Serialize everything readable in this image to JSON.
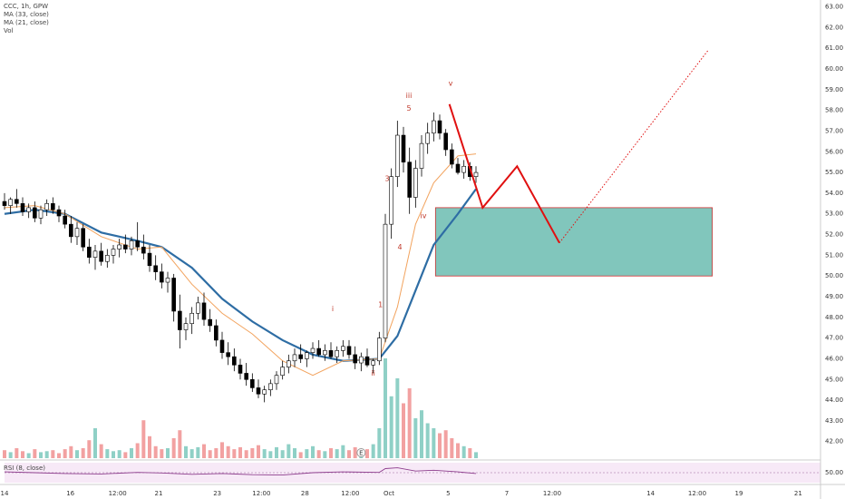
{
  "chart_data": {
    "type": "candlestick",
    "title": "CCC, 1h, GPW",
    "xlim": [
      0,
      135
    ],
    "ylim": [
      41.2,
      63.2
    ],
    "grid": true,
    "xticks": [
      {
        "value": 0,
        "label": "14"
      },
      {
        "value": 10.9,
        "label": "16"
      },
      {
        "value": 18.7,
        "label": "12:00"
      },
      {
        "value": 25.5,
        "label": "21"
      },
      {
        "value": 35.2,
        "label": "23"
      },
      {
        "value": 42.5,
        "label": "12:00"
      },
      {
        "value": 49.7,
        "label": "28"
      },
      {
        "value": 57.2,
        "label": "12:00"
      },
      {
        "value": 63.6,
        "label": "Oct"
      },
      {
        "value": 73.4,
        "label": "5"
      },
      {
        "value": 83.1,
        "label": "7"
      },
      {
        "value": 90.6,
        "label": "12:00"
      },
      {
        "value": 106.9,
        "label": "14"
      },
      {
        "value": 114.6,
        "label": "12:00"
      },
      {
        "value": 121.5,
        "label": "19"
      },
      {
        "value": 131.3,
        "label": "21"
      }
    ],
    "yticks": [
      {
        "value": 42,
        "label": "42.00"
      },
      {
        "value": 43,
        "label": "43.00"
      },
      {
        "value": 44,
        "label": "44.00"
      },
      {
        "value": 45,
        "label": "45.00"
      },
      {
        "value": 46,
        "label": "46.00"
      },
      {
        "value": 47,
        "label": "47.00"
      },
      {
        "value": 48,
        "label": "48.00"
      },
      {
        "value": 49,
        "label": "49.00"
      },
      {
        "value": 50,
        "label": "50.00"
      },
      {
        "value": 51,
        "label": "51.00"
      },
      {
        "value": 52,
        "label": "52.00"
      },
      {
        "value": 53,
        "label": "53.00"
      },
      {
        "value": 54,
        "label": "54.00"
      },
      {
        "value": 55,
        "label": "55.00"
      },
      {
        "value": 56,
        "label": "56.00"
      },
      {
        "value": 57,
        "label": "57.00"
      },
      {
        "value": 58,
        "label": "58.00"
      },
      {
        "value": 59,
        "label": "59.00"
      },
      {
        "value": 60,
        "label": "60.00"
      },
      {
        "value": 61,
        "label": "61.00"
      },
      {
        "value": 62,
        "label": "62.00"
      },
      {
        "value": 63,
        "label": "63.00"
      }
    ],
    "up_color": "#ffffff",
    "down_color": "#000000",
    "ohlc": [
      [
        53.6,
        54.0,
        53.2,
        53.4
      ],
      [
        53.4,
        53.8,
        53.0,
        53.7
      ],
      [
        53.7,
        54.2,
        53.3,
        53.5
      ],
      [
        53.5,
        53.8,
        52.9,
        53.1
      ],
      [
        53.1,
        53.5,
        52.8,
        53.3
      ],
      [
        53.3,
        53.6,
        52.6,
        52.8
      ],
      [
        52.8,
        53.4,
        52.5,
        53.2
      ],
      [
        53.2,
        53.7,
        52.9,
        53.5
      ],
      [
        53.5,
        53.8,
        53.0,
        53.2
      ],
      [
        53.2,
        53.4,
        52.6,
        52.9
      ],
      [
        52.9,
        53.2,
        52.3,
        52.5
      ],
      [
        52.5,
        52.9,
        51.6,
        51.9
      ],
      [
        51.9,
        52.6,
        51.5,
        52.3
      ],
      [
        52.3,
        52.5,
        51.2,
        51.4
      ],
      [
        51.4,
        51.8,
        50.6,
        50.9
      ],
      [
        50.9,
        51.5,
        50.3,
        51.2
      ],
      [
        51.2,
        51.6,
        50.5,
        50.7
      ],
      [
        50.7,
        51.3,
        50.4,
        51.0
      ],
      [
        51.0,
        51.5,
        50.6,
        51.3
      ],
      [
        51.3,
        51.8,
        50.9,
        51.5
      ],
      [
        51.5,
        52.0,
        51.1,
        51.3
      ],
      [
        51.3,
        51.9,
        51.0,
        51.7
      ],
      [
        51.7,
        52.6,
        51.2,
        51.4
      ],
      [
        51.4,
        52.0,
        50.8,
        51.1
      ],
      [
        51.1,
        51.5,
        50.2,
        50.5
      ],
      [
        50.5,
        51.0,
        49.8,
        50.2
      ],
      [
        50.2,
        50.6,
        49.4,
        49.7
      ],
      [
        49.7,
        50.2,
        49.2,
        49.9
      ],
      [
        49.9,
        50.1,
        47.8,
        48.3
      ],
      [
        48.3,
        49.1,
        46.5,
        47.4
      ],
      [
        47.4,
        48.0,
        46.9,
        47.7
      ],
      [
        47.7,
        48.5,
        47.2,
        48.2
      ],
      [
        48.2,
        49.0,
        47.9,
        48.7
      ],
      [
        48.7,
        49.2,
        47.6,
        47.9
      ],
      [
        47.9,
        48.4,
        47.3,
        47.6
      ],
      [
        47.6,
        47.9,
        46.6,
        46.9
      ],
      [
        46.9,
        47.3,
        46.0,
        46.3
      ],
      [
        46.3,
        46.8,
        45.7,
        46.1
      ],
      [
        46.1,
        46.5,
        45.4,
        45.7
      ],
      [
        45.7,
        46.0,
        45.0,
        45.3
      ],
      [
        45.3,
        45.8,
        44.7,
        45.0
      ],
      [
        45.0,
        45.3,
        44.4,
        44.6
      ],
      [
        44.6,
        45.0,
        44.1,
        44.3
      ],
      [
        44.3,
        44.7,
        43.9,
        44.5
      ],
      [
        44.5,
        45.0,
        44.2,
        44.8
      ],
      [
        44.8,
        45.4,
        44.5,
        45.2
      ],
      [
        45.2,
        45.9,
        45.0,
        45.6
      ],
      [
        45.6,
        46.2,
        45.3,
        45.9
      ],
      [
        45.9,
        46.5,
        45.6,
        46.2
      ],
      [
        46.2,
        46.7,
        45.8,
        46.0
      ],
      [
        46.0,
        46.4,
        45.6,
        46.3
      ],
      [
        46.3,
        46.8,
        46.0,
        46.5
      ],
      [
        46.5,
        46.9,
        46.1,
        46.2
      ],
      [
        46.2,
        46.7,
        45.9,
        46.4
      ],
      [
        46.4,
        46.8,
        46.0,
        46.1
      ],
      [
        46.1,
        46.6,
        45.8,
        46.4
      ],
      [
        46.4,
        46.9,
        46.1,
        46.6
      ],
      [
        46.6,
        46.9,
        46.0,
        46.2
      ],
      [
        46.2,
        46.6,
        45.5,
        45.8
      ],
      [
        45.8,
        46.3,
        45.4,
        46.1
      ],
      [
        46.1,
        46.5,
        45.6,
        45.7
      ],
      [
        45.7,
        46.0,
        45.3,
        45.9
      ],
      [
        45.9,
        47.3,
        45.7,
        47.0
      ],
      [
        47.0,
        53.0,
        46.8,
        52.5
      ],
      [
        52.5,
        55.2,
        51.8,
        54.8
      ],
      [
        54.8,
        57.5,
        54.3,
        56.8
      ],
      [
        56.8,
        57.2,
        55.0,
        55.5
      ],
      [
        55.5,
        56.2,
        53.0,
        53.8
      ],
      [
        53.8,
        55.6,
        53.3,
        55.2
      ],
      [
        55.2,
        56.8,
        54.8,
        56.4
      ],
      [
        56.4,
        57.4,
        55.9,
        56.9
      ],
      [
        56.9,
        57.9,
        56.5,
        57.5
      ],
      [
        57.5,
        57.8,
        56.6,
        56.9
      ],
      [
        56.9,
        57.1,
        55.8,
        56.1
      ],
      [
        56.1,
        56.4,
        55.2,
        55.4
      ],
      [
        55.4,
        55.7,
        54.9,
        55.0
      ],
      [
        55.0,
        55.6,
        54.7,
        55.3
      ],
      [
        55.3,
        55.5,
        54.6,
        54.8
      ],
      [
        54.8,
        55.3,
        54.5,
        55.0
      ]
    ],
    "volume": {
      "name": "Vol",
      "up_color": "#8fd0c6",
      "down_color": "#f2a1a1",
      "values": [
        8,
        6,
        10,
        7,
        5,
        9,
        6,
        7,
        8,
        5,
        9,
        12,
        8,
        10,
        18,
        30,
        14,
        9,
        7,
        8,
        6,
        10,
        15,
        38,
        22,
        12,
        9,
        10,
        20,
        28,
        12,
        9,
        11,
        14,
        8,
        10,
        16,
        12,
        9,
        11,
        8,
        10,
        13,
        9,
        7,
        11,
        8,
        14,
        10,
        6,
        9,
        12,
        8,
        7,
        10,
        9,
        13,
        8,
        11,
        6,
        9,
        14,
        30,
        100,
        62,
        80,
        55,
        70,
        40,
        48,
        35,
        30,
        25,
        28,
        20,
        15,
        12,
        10,
        6
      ]
    },
    "series": [
      {
        "name": "MA (33, close)",
        "color": "#2e6da4",
        "width": 2.2,
        "x": [
          0,
          5,
          10,
          16,
          22,
          26,
          31,
          36,
          41,
          46,
          51,
          56,
          62,
          65,
          68,
          71,
          75,
          78
        ],
        "values": [
          53.0,
          53.2,
          53.0,
          52.1,
          51.7,
          51.4,
          50.4,
          48.9,
          47.8,
          46.9,
          46.2,
          45.9,
          46.0,
          47.1,
          49.3,
          51.5,
          53.0,
          54.2
        ]
      },
      {
        "name": "MA (21, close)",
        "color": "#f2a35e",
        "width": 1,
        "x": [
          0,
          5,
          10,
          16,
          22,
          26,
          31,
          36,
          41,
          46,
          51,
          56,
          62,
          65,
          68,
          71,
          75,
          78
        ],
        "values": [
          53.3,
          53.4,
          53.0,
          51.9,
          51.3,
          51.4,
          49.6,
          48.2,
          47.2,
          45.9,
          45.2,
          45.9,
          46.0,
          48.5,
          52.5,
          54.5,
          55.8,
          55.9
        ]
      }
    ],
    "rsi": {
      "name": "RSI (8, close)",
      "color": "#8e3f8e",
      "ylim": [
        0,
        100
      ],
      "yticks": [
        {
          "value": 50,
          "label": "50.00"
        }
      ],
      "x": [
        0,
        5,
        10,
        16,
        22,
        26,
        31,
        36,
        41,
        46,
        51,
        56,
        62,
        63,
        65,
        68,
        71,
        75,
        78
      ],
      "values": [
        55,
        50,
        45,
        42,
        52,
        48,
        40,
        45,
        38,
        36,
        50,
        55,
        52,
        75,
        80,
        60,
        65,
        55,
        45
      ]
    },
    "annotations": [
      {
        "text": "i",
        "x": 54.3,
        "y": 48.4
      },
      {
        "text": "ii",
        "x": 61,
        "y": 45.3
      },
      {
        "text": "iii",
        "x": 66.9,
        "y": 58.7
      },
      {
        "text": "iv",
        "x": 69.3,
        "y": 52.9
      },
      {
        "text": "v",
        "x": 73.8,
        "y": 59.3
      },
      {
        "text": "1",
        "x": 62.2,
        "y": 48.6
      },
      {
        "text": "3",
        "x": 63.3,
        "y": 54.7
      },
      {
        "text": "4",
        "x": 65.4,
        "y": 51.4
      },
      {
        "text": "5",
        "x": 66.9,
        "y": 58.1
      }
    ],
    "projection": {
      "color": "#e01010",
      "x": [
        73.6,
        79.1,
        84.8,
        91.8
      ],
      "y": [
        58.3,
        53.3,
        55.3,
        51.6
      ]
    },
    "target": {
      "color": "#e01010",
      "x": [
        91.8,
        116.4
      ],
      "y": [
        51.6,
        60.9
      ]
    },
    "zone": {
      "color": "#6bbcb0",
      "border": "#d03030",
      "x": [
        71.3,
        117.1
      ],
      "y": [
        50.0,
        53.3
      ]
    },
    "events": [
      {
        "label": "E",
        "x": 59
      }
    ]
  }
}
